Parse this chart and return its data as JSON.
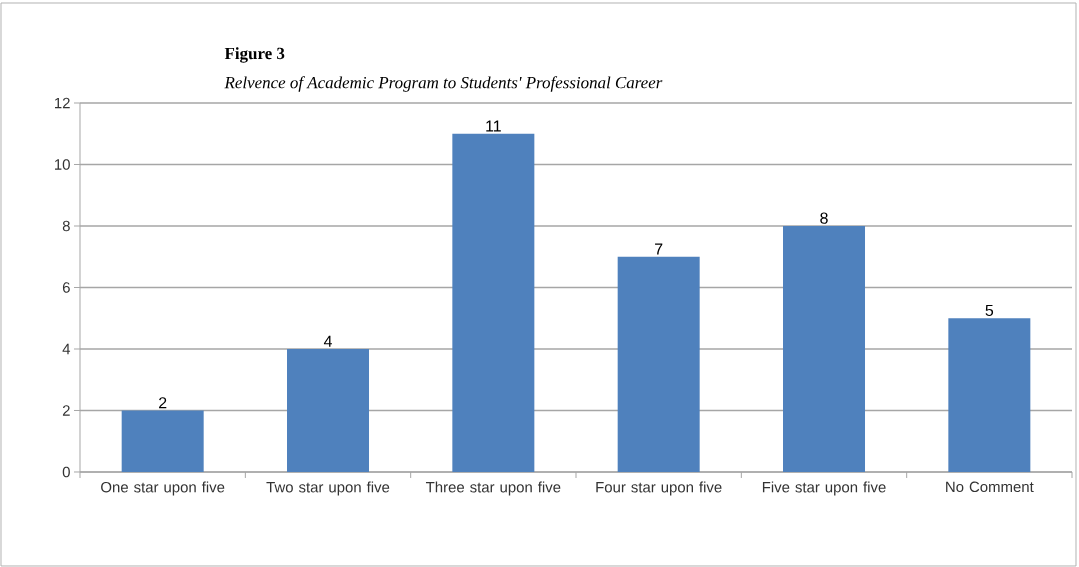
{
  "chart_data": {
    "type": "bar",
    "title": "Figure 3",
    "subtitle": "Relvence of Academic Program to Students' Professional Career",
    "categories": [
      "One star upon five",
      "Two star upon five",
      "Three star upon five",
      "Four star upon five",
      "Five star upon five",
      "No Comment"
    ],
    "values": [
      2,
      4,
      11,
      7,
      8,
      5
    ],
    "color": "#4f81bd",
    "data_labels": true,
    "ylim": [
      0,
      12
    ],
    "yticks": [
      0,
      2,
      4,
      6,
      8,
      10,
      12
    ],
    "grid": "y"
  }
}
